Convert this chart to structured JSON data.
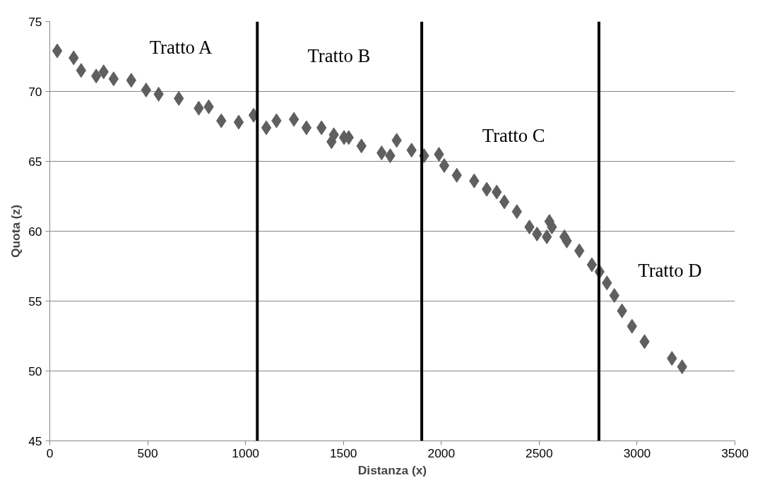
{
  "chart_data": {
    "type": "scatter",
    "xlabel": "Distanza (x)",
    "ylabel": "Quota (z)",
    "xlim": [
      0,
      3500
    ],
    "xticks": [
      0,
      500,
      1000,
      1500,
      2000,
      2500,
      3000,
      3500
    ],
    "ylim": [
      45,
      75
    ],
    "yticks": [
      45,
      50,
      55,
      60,
      65,
      70,
      75
    ],
    "grid": "y",
    "marker": "diamond",
    "series": [
      {
        "color": "#5f5f5f",
        "x": [
          38,
          122,
          160,
          237,
          275,
          326,
          416,
          492,
          556,
          659,
          761,
          812,
          876,
          965,
          1041,
          1106,
          1158,
          1247,
          1311,
          1388,
          1439,
          1451,
          1503,
          1527,
          1592,
          1695,
          1739,
          1772,
          1848,
          1912,
          1988,
          2015,
          2079,
          2168,
          2232,
          2283,
          2322,
          2386,
          2450,
          2489,
          2539,
          2552,
          2565,
          2629,
          2641,
          2705,
          2769,
          2808,
          2846,
          2884,
          2923,
          2974,
          3038,
          3178,
          3230
        ],
        "values": [
          72.9,
          72.4,
          71.5,
          71.1,
          71.4,
          70.9,
          70.8,
          70.1,
          69.8,
          69.5,
          68.8,
          68.9,
          67.9,
          67.8,
          68.3,
          67.4,
          67.9,
          68.0,
          67.4,
          67.4,
          66.4,
          66.9,
          66.7,
          66.7,
          66.1,
          65.6,
          65.4,
          66.5,
          65.8,
          65.4,
          65.5,
          64.7,
          64.0,
          63.6,
          63.0,
          62.8,
          62.1,
          61.4,
          60.3,
          59.8,
          59.6,
          60.7,
          60.3,
          59.6,
          59.3,
          58.6,
          57.6,
          57.1,
          56.3,
          55.4,
          54.3,
          53.2,
          52.1,
          50.9,
          50.3
        ]
      }
    ],
    "ref_lines": [
      {
        "axis": "x",
        "value": 1060,
        "color": "#000000"
      },
      {
        "axis": "x",
        "value": 1900,
        "color": "#000000"
      },
      {
        "axis": "x",
        "value": 2805,
        "color": "#000000"
      }
    ],
    "annotations": [
      "Tratto A",
      "Tratto B",
      "Tratto C",
      "Tratto D"
    ]
  }
}
